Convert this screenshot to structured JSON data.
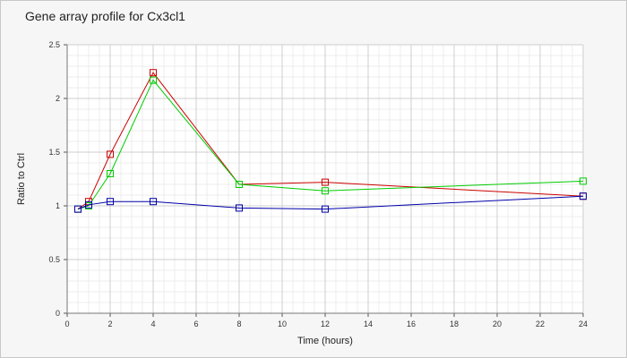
{
  "chart_data": {
    "type": "line",
    "title": "Gene array profile for Cx3cl1",
    "xlabel": "Time (hours)",
    "ylabel": "Ratio to Ctrl",
    "xlim": [
      0,
      24
    ],
    "ylim": [
      0,
      2.5
    ],
    "xticks": [
      "0",
      "2",
      "4",
      "6",
      "8",
      "10",
      "12",
      "14",
      "16",
      "18",
      "20",
      "22",
      "24"
    ],
    "yticks": [
      "0",
      "0.5",
      "1",
      "1.5",
      "2",
      "2.5"
    ],
    "grid": true,
    "legend": "none",
    "series": [
      {
        "color": "#cc0000",
        "x": [
          0.5,
          1,
          2,
          4,
          8,
          12,
          24
        ],
        "y": [
          0.97,
          1.04,
          1.48,
          2.24,
          1.2,
          1.22,
          1.09
        ]
      },
      {
        "color": "#00cc00",
        "x": [
          0.5,
          1,
          2,
          4,
          8,
          12,
          24
        ],
        "y": [
          0.97,
          1.0,
          1.3,
          2.17,
          1.2,
          1.14,
          1.23
        ]
      },
      {
        "color": "#0000aa",
        "x": [
          0.5,
          1,
          2,
          4,
          8,
          12,
          24
        ],
        "y": [
          0.97,
          1.01,
          1.04,
          1.04,
          0.98,
          0.97,
          1.09
        ]
      }
    ]
  }
}
